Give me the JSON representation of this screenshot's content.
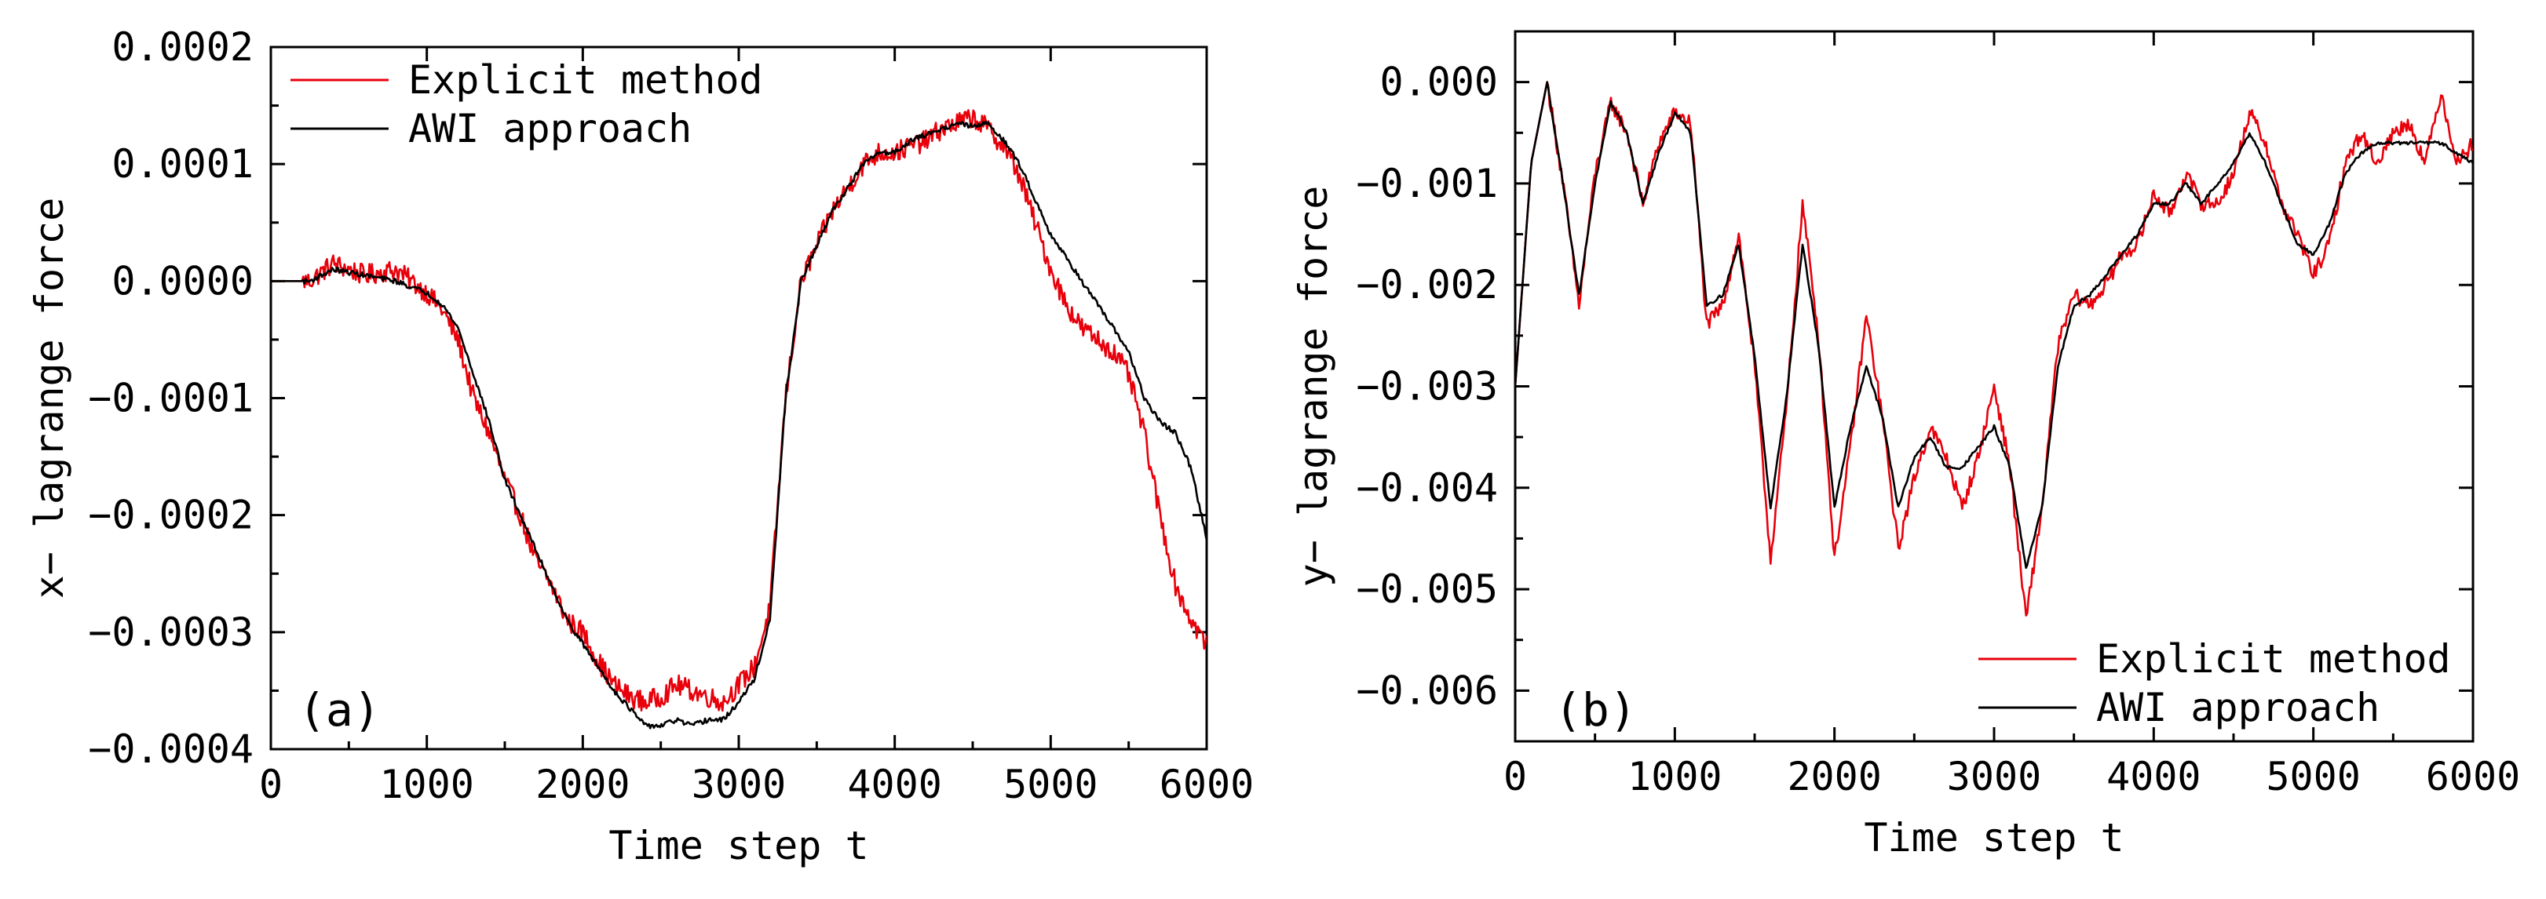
{
  "figure": {
    "background": "#ffffff"
  },
  "chart_data": [
    {
      "id": "a",
      "type": "line",
      "panel_label": "(a)",
      "title": "",
      "xlabel": "Time step t",
      "ylabel": "x- lagrange force",
      "xlim": [
        0,
        6000
      ],
      "ylim": [
        -0.0004,
        0.0002
      ],
      "x_ticks": [
        0,
        1000,
        2000,
        3000,
        4000,
        5000,
        6000
      ],
      "x_tick_labels": [
        "0",
        "1000",
        "2000",
        "3000",
        "4000",
        "5000",
        "6000"
      ],
      "y_ticks": [
        0.0002,
        0.0001,
        0.0,
        -0.0001,
        -0.0002,
        -0.0003,
        -0.0004
      ],
      "y_tick_labels": [
        "0.0002",
        "0.0001",
        "0.0000",
        "-0.0001",
        "-0.0002",
        "-0.0003",
        "-0.0004"
      ],
      "legend_position": "top-left",
      "grid": false,
      "series": [
        {
          "name": "Explicit method",
          "color": "#e8000b",
          "noise": 0.5,
          "x": [
            0,
            250,
            400,
            600,
            800,
            1000,
            1100,
            1200,
            1300,
            1400,
            1500,
            1600,
            1700,
            1800,
            1900,
            2000,
            2100,
            2200,
            2300,
            2400,
            2500,
            2600,
            2700,
            2800,
            2900,
            3000,
            3100,
            3200,
            3300,
            3400,
            3500,
            3600,
            3700,
            3800,
            3900,
            4000,
            4100,
            4200,
            4300,
            4400,
            4500,
            4600,
            4700,
            4800,
            4900,
            5000,
            5100,
            5200,
            5300,
            5400,
            5500,
            5600,
            5700,
            5800,
            5900,
            6000
          ],
          "y": [
            0.0,
            0.0,
            1.5e-05,
            5e-06,
            1e-05,
            -1e-05,
            -2.5e-05,
            -5e-05,
            -0.0001,
            -0.00013,
            -0.00017,
            -0.0002,
            -0.00024,
            -0.00026,
            -0.00029,
            -0.0003,
            -0.000325,
            -0.000345,
            -0.000355,
            -0.00036,
            -0.000355,
            -0.000345,
            -0.00035,
            -0.000355,
            -0.00036,
            -0.000345,
            -0.00033,
            -0.00028,
            -0.0001,
            0.0,
            3e-05,
            6e-05,
            8e-05,
            0.0001,
            0.00011,
            0.00011,
            0.000115,
            0.00012,
            0.00013,
            0.000135,
            0.00014,
            0.00013,
            0.000115,
            9e-05,
            5e-05,
            1e-05,
            -2e-05,
            -4e-05,
            -5e-05,
            -6e-05,
            -8e-05,
            -0.00013,
            -0.0002,
            -0.00026,
            -0.00029,
            -0.00031
          ]
        },
        {
          "name": "AWI approach",
          "color": "#000000",
          "noise": 0.12,
          "x": [
            0,
            250,
            400,
            600,
            800,
            1000,
            1100,
            1200,
            1300,
            1400,
            1500,
            1600,
            1700,
            1800,
            1900,
            2000,
            2100,
            2200,
            2300,
            2400,
            2500,
            2600,
            2700,
            2800,
            2900,
            3000,
            3100,
            3200,
            3300,
            3400,
            3500,
            3600,
            3700,
            3800,
            3900,
            4000,
            4100,
            4200,
            4300,
            4400,
            4500,
            4600,
            4700,
            4800,
            4900,
            5000,
            5100,
            5200,
            5300,
            5400,
            5500,
            5600,
            5700,
            5800,
            5900,
            6000
          ],
          "y": [
            0.0,
            0.0,
            1e-05,
            5e-06,
            0.0,
            -1e-05,
            -2e-05,
            -4e-05,
            -8e-05,
            -0.00012,
            -0.00017,
            -0.0002,
            -0.00023,
            -0.00026,
            -0.00029,
            -0.00031,
            -0.00033,
            -0.00035,
            -0.000365,
            -0.00038,
            -0.00038,
            -0.000375,
            -0.00038,
            -0.000375,
            -0.000375,
            -0.00036,
            -0.00034,
            -0.00029,
            -0.0001,
            0.0,
            3e-05,
            6e-05,
            8e-05,
            0.0001,
            0.00011,
            0.00011,
            0.00012,
            0.000125,
            0.00013,
            0.000135,
            0.000132,
            0.000135,
            0.00012,
            0.0001,
            7e-05,
            4e-05,
            2e-05,
            0.0,
            -2e-05,
            -4e-05,
            -6e-05,
            -0.0001,
            -0.00012,
            -0.00013,
            -0.00016,
            -0.00022
          ]
        }
      ]
    },
    {
      "id": "b",
      "type": "line",
      "panel_label": "(b)",
      "title": "",
      "xlabel": "Time step t",
      "ylabel": "y- lagrange force",
      "xlim": [
        0,
        6000
      ],
      "ylim": [
        -0.0065,
        0.0005
      ],
      "x_ticks": [
        0,
        1000,
        2000,
        3000,
        4000,
        5000,
        6000
      ],
      "x_tick_labels": [
        "0",
        "1000",
        "2000",
        "3000",
        "4000",
        "5000",
        "6000"
      ],
      "y_ticks": [
        0.0,
        -0.001,
        -0.002,
        -0.003,
        -0.004,
        -0.005,
        -0.006
      ],
      "y_tick_labels": [
        "0.000",
        "-0.001",
        "-0.002",
        "-0.003",
        "-0.004",
        "-0.005",
        "-0.006"
      ],
      "legend_position": "bottom-right",
      "grid": false,
      "series": [
        {
          "name": "Explicit method",
          "color": "#e8000b",
          "noise": 0.35,
          "x": [
            0,
            100,
            200,
            300,
            400,
            500,
            600,
            700,
            800,
            900,
            1000,
            1100,
            1200,
            1300,
            1400,
            1500,
            1600,
            1700,
            1800,
            1900,
            2000,
            2100,
            2200,
            2300,
            2400,
            2500,
            2600,
            2700,
            2800,
            2900,
            3000,
            3100,
            3200,
            3300,
            3400,
            3500,
            3600,
            3700,
            3800,
            3900,
            4000,
            4100,
            4200,
            4300,
            4400,
            4500,
            4600,
            4700,
            4800,
            4900,
            5000,
            5100,
            5200,
            5300,
            5400,
            5500,
            5600,
            5700,
            5800,
            5900,
            6000
          ],
          "y": [
            -0.003,
            -0.0008,
            0.0,
            -0.001,
            -0.0022,
            -0.0009,
            -0.0002,
            -0.0005,
            -0.0012,
            -0.0006,
            -0.0003,
            -0.0004,
            -0.0024,
            -0.0022,
            -0.0015,
            -0.0028,
            -0.0047,
            -0.0032,
            -0.0012,
            -0.0025,
            -0.0047,
            -0.0036,
            -0.0023,
            -0.0033,
            -0.0046,
            -0.0039,
            -0.0034,
            -0.0037,
            -0.0042,
            -0.0037,
            -0.003,
            -0.0038,
            -0.0053,
            -0.0042,
            -0.0026,
            -0.0021,
            -0.0022,
            -0.002,
            -0.0017,
            -0.0016,
            -0.0011,
            -0.0013,
            -0.0009,
            -0.0012,
            -0.0012,
            -0.0009,
            -0.0003,
            -0.0006,
            -0.0012,
            -0.0015,
            -0.0019,
            -0.0016,
            -0.0008,
            -0.0005,
            -0.0008,
            -0.0005,
            -0.0004,
            -0.0008,
            -0.0001,
            -0.0008,
            -0.0006
          ]
        },
        {
          "name": "AWI approach",
          "color": "#000000",
          "noise": 0.08,
          "x": [
            0,
            100,
            200,
            300,
            400,
            500,
            600,
            700,
            800,
            900,
            1000,
            1100,
            1200,
            1300,
            1400,
            1500,
            1600,
            1700,
            1800,
            1900,
            2000,
            2100,
            2200,
            2300,
            2400,
            2500,
            2600,
            2700,
            2800,
            2900,
            3000,
            3100,
            3200,
            3300,
            3400,
            3500,
            3600,
            3700,
            3800,
            3900,
            4000,
            4100,
            4200,
            4300,
            4400,
            4500,
            4600,
            4700,
            4800,
            4900,
            5000,
            5100,
            5200,
            5300,
            5400,
            5500,
            5600,
            5700,
            5800,
            5900,
            6000
          ],
          "y": [
            -0.003,
            -0.0008,
            0.0,
            -0.001,
            -0.0021,
            -0.001,
            -0.0002,
            -0.0005,
            -0.0012,
            -0.0007,
            -0.0003,
            -0.0005,
            -0.0022,
            -0.0021,
            -0.0016,
            -0.0027,
            -0.0042,
            -0.0031,
            -0.0016,
            -0.0026,
            -0.0042,
            -0.0034,
            -0.0028,
            -0.0033,
            -0.0042,
            -0.0037,
            -0.0035,
            -0.0038,
            -0.0038,
            -0.0036,
            -0.0034,
            -0.0038,
            -0.0048,
            -0.0042,
            -0.0028,
            -0.0022,
            -0.0021,
            -0.0019,
            -0.0017,
            -0.0015,
            -0.0012,
            -0.0012,
            -0.001,
            -0.0012,
            -0.001,
            -0.0008,
            -0.0005,
            -0.0008,
            -0.0012,
            -0.0016,
            -0.0017,
            -0.0014,
            -0.0009,
            -0.0007,
            -0.0006,
            -0.0006,
            -0.0006,
            -0.0006,
            -0.0006,
            -0.0007,
            -0.0008
          ]
        }
      ]
    }
  ]
}
